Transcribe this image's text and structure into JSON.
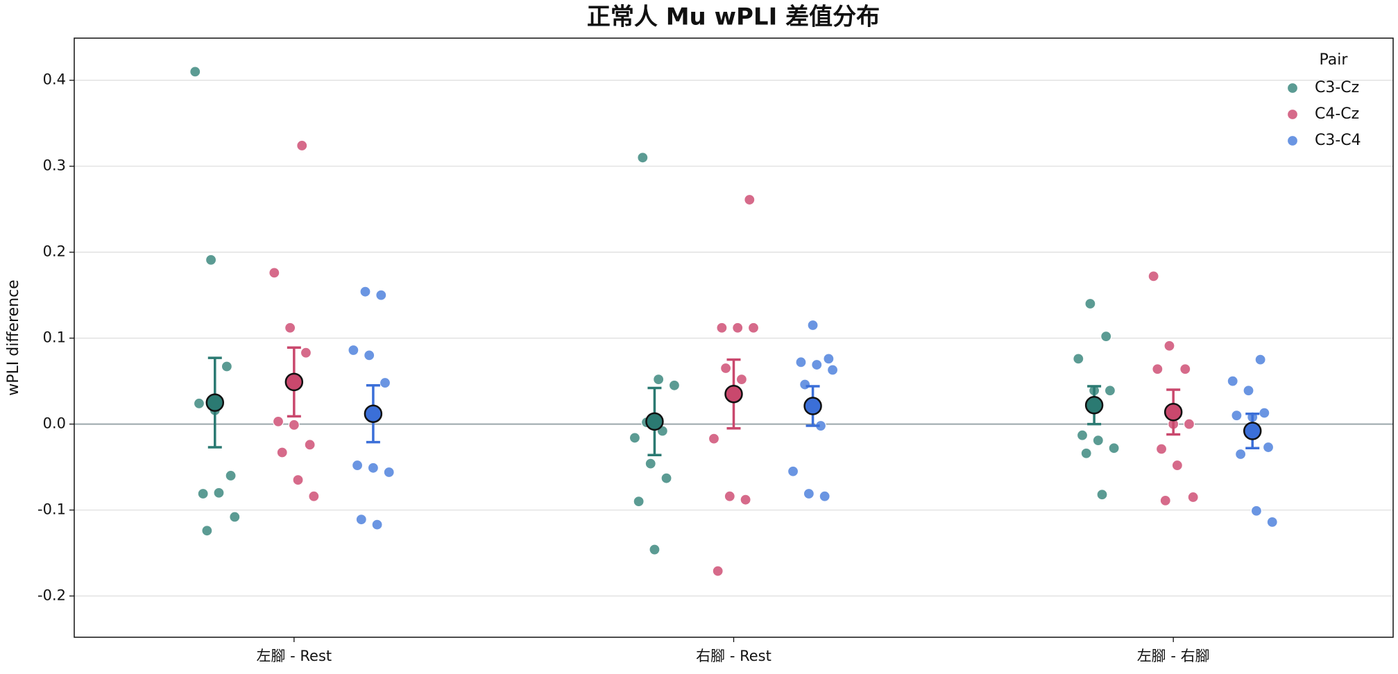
{
  "chart_data": {
    "type": "strip",
    "title": "正常人 Mu wPLI 差值分布",
    "ylabel": "wPLI difference",
    "categories": [
      "左腳 - Rest",
      "右腳 - Rest",
      "左腳 - 右腳"
    ],
    "series": [
      {
        "name": "C3-Cz",
        "color": "#5b9b93",
        "mean_color": "#2b7a72",
        "values": [
          [
            0.41,
            0.191,
            0.067,
            0.024,
            0.016,
            -0.06,
            -0.081,
            -0.08,
            -0.108,
            -0.124
          ],
          [
            0.31,
            0.052,
            0.045,
            0.002,
            -0.008,
            -0.016,
            -0.046,
            -0.063,
            -0.09,
            -0.146
          ],
          [
            0.14,
            0.102,
            0.076,
            0.039,
            0.039,
            -0.013,
            -0.019,
            -0.028,
            -0.034,
            -0.082
          ]
        ],
        "means": [
          0.025,
          0.003,
          0.022
        ],
        "errors": [
          0.052,
          0.039,
          0.022
        ]
      },
      {
        "name": "C4-Cz",
        "color": "#d66a8a",
        "mean_color": "#c9486d",
        "values": [
          [
            0.324,
            0.176,
            0.112,
            0.083,
            0.003,
            -0.001,
            -0.024,
            -0.033,
            -0.065,
            -0.084
          ],
          [
            0.261,
            0.112,
            0.112,
            0.112,
            0.065,
            0.052,
            -0.017,
            -0.084,
            -0.088,
            -0.171
          ],
          [
            0.172,
            0.091,
            0.064,
            0.064,
            0.0,
            0.0,
            -0.029,
            -0.048,
            -0.085,
            -0.089
          ]
        ],
        "means": [
          0.049,
          0.035,
          0.014
        ],
        "errors": [
          0.04,
          0.04,
          0.026
        ]
      },
      {
        "name": "C3-C4",
        "color": "#6a95e2",
        "mean_color": "#3b6fd8",
        "values": [
          [
            0.154,
            0.15,
            0.086,
            0.08,
            0.048,
            -0.048,
            -0.051,
            -0.056,
            -0.111,
            -0.117
          ],
          [
            0.115,
            0.076,
            0.072,
            0.069,
            0.063,
            0.046,
            -0.002,
            -0.055,
            -0.081,
            -0.084
          ],
          [
            0.075,
            0.05,
            0.039,
            0.013,
            0.01,
            0.008,
            -0.027,
            -0.035,
            -0.101,
            -0.114
          ]
        ],
        "means": [
          0.012,
          0.021,
          -0.008
        ],
        "errors": [
          0.033,
          0.023,
          0.02
        ]
      }
    ],
    "ylim": [
      -0.248,
      0.449
    ],
    "yticks": [
      -0.2,
      -0.1,
      {
        "value": 0,
        "label": "0.0"
      },
      0.1,
      0.2,
      0.3,
      0.4
    ],
    "reference_line": 0,
    "grid": true,
    "legend_title": "Pair",
    "legend": "upper right"
  }
}
